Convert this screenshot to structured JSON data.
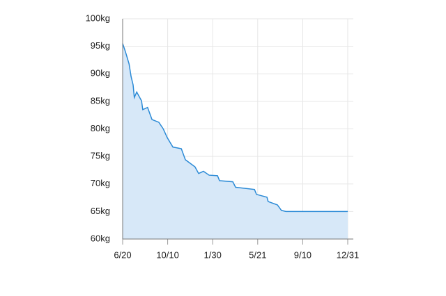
{
  "chart_data": {
    "type": "area",
    "x": [
      0,
      7,
      16,
      21,
      26,
      29,
      35,
      47,
      50,
      62,
      73,
      90,
      101,
      111,
      125,
      146,
      156,
      180,
      189,
      201,
      215,
      236,
      241,
      274,
      281,
      328,
      333,
      359,
      362,
      385,
      395,
      406,
      560
    ],
    "values": [
      95.5,
      94,
      91.8,
      89.5,
      88,
      85.7,
      86.7,
      85.1,
      83.5,
      83.9,
      81.7,
      81.2,
      80,
      78.4,
      76.7,
      76.4,
      74.4,
      73.1,
      71.9,
      72.3,
      71.6,
      71.5,
      70.6,
      70.4,
      69.4,
      69.0,
      68.1,
      67.6,
      66.8,
      66.2,
      65.2,
      65.0,
      65.0
    ],
    "color": "#2b8ad6",
    "fill": "#d7e8f8",
    "xlim": [
      0,
      560
    ],
    "xticks": [
      {
        "value": 0,
        "label": "6/20"
      },
      {
        "value": 112,
        "label": "10/10"
      },
      {
        "value": 224,
        "label": "1/30"
      },
      {
        "value": 336,
        "label": "5/21"
      },
      {
        "value": 448,
        "label": "9/10"
      },
      {
        "value": 560,
        "label": "12/31"
      }
    ],
    "ylim": [
      60,
      100
    ],
    "yticks": [
      {
        "value": 60,
        "label": "60kg"
      },
      {
        "value": 65,
        "label": "65kg"
      },
      {
        "value": 70,
        "label": "70kg"
      },
      {
        "value": 75,
        "label": "75kg"
      },
      {
        "value": 80,
        "label": "80kg"
      },
      {
        "value": 85,
        "label": "85kg"
      },
      {
        "value": 90,
        "label": "90kg"
      },
      {
        "value": 95,
        "label": "95kg"
      },
      {
        "value": 100,
        "label": "100kg"
      }
    ],
    "grid": true
  }
}
